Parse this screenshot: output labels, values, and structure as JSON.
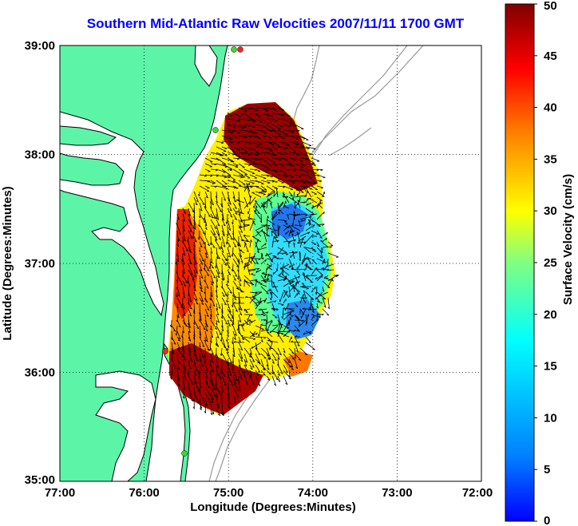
{
  "title": "Southern Mid-Atlantic Raw Velocities 2007/11/11 1700 GMT",
  "x_axis": {
    "label": "Longitude (Degrees:Minutes)",
    "ticks": [
      "77:00",
      "76:00",
      "75:00",
      "74:00",
      "73:00",
      "72:00"
    ]
  },
  "y_axis": {
    "label": "Latitude (Degrees:Minutes)",
    "ticks": [
      "39:00",
      "38:00",
      "37:00",
      "36:00",
      "35:00"
    ]
  },
  "colorbar": {
    "label": "Surface Velocity (cm/s)",
    "ticks": [
      "50",
      "45",
      "40",
      "35",
      "30",
      "25",
      "20",
      "15",
      "10",
      "5",
      "0"
    ],
    "range": [
      0,
      50
    ],
    "colormap": "jet"
  },
  "colors": {
    "title": "#0000ff",
    "land": "#5cf5a8",
    "coastline": "#000000",
    "bathymetry": "#9a9a9a",
    "station_marker": "#33dd33",
    "station_marker_active": "#ff2222"
  },
  "map": {
    "projection": "lat-lon",
    "lon_range": [
      "77:00",
      "72:00"
    ],
    "lat_range": [
      "35:00",
      "39:00"
    ],
    "grid": "dotted"
  }
}
